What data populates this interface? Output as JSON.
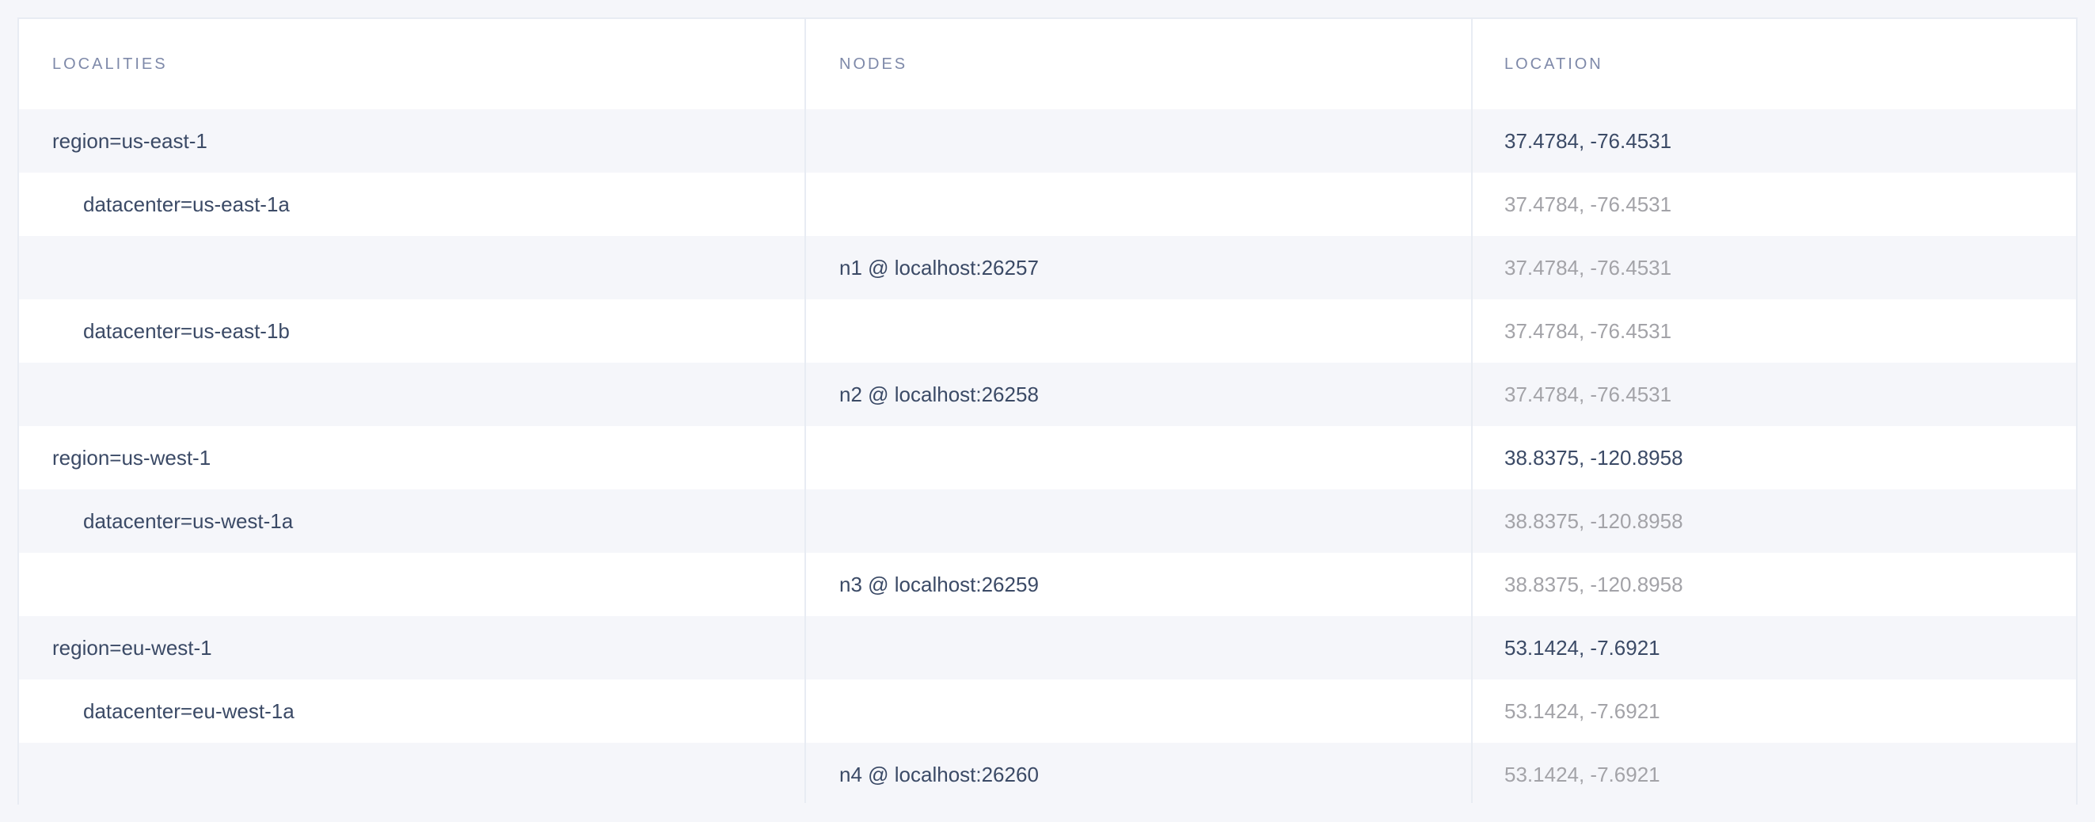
{
  "table": {
    "headers": [
      "LOCALITIES",
      "NODES",
      "LOCATION"
    ],
    "rows": [
      {
        "locality": "region=us-east-1",
        "node": "",
        "location": "37.4784, -76.4531",
        "level": 0
      },
      {
        "locality": "datacenter=us-east-1a",
        "node": "",
        "location": "37.4784, -76.4531",
        "level": 1
      },
      {
        "locality": "",
        "node": "n1 @ localhost:26257",
        "location": "37.4784, -76.4531",
        "level": 2
      },
      {
        "locality": "datacenter=us-east-1b",
        "node": "",
        "location": "37.4784, -76.4531",
        "level": 1
      },
      {
        "locality": "",
        "node": "n2 @ localhost:26258",
        "location": "37.4784, -76.4531",
        "level": 2
      },
      {
        "locality": "region=us-west-1",
        "node": "",
        "location": "38.8375, -120.8958",
        "level": 0
      },
      {
        "locality": "datacenter=us-west-1a",
        "node": "",
        "location": "38.8375, -120.8958",
        "level": 1
      },
      {
        "locality": "",
        "node": "n3 @ localhost:26259",
        "location": "38.8375, -120.8958",
        "level": 2
      },
      {
        "locality": "region=eu-west-1",
        "node": "",
        "location": "53.1424, -7.6921",
        "level": 0
      },
      {
        "locality": "datacenter=eu-west-1a",
        "node": "",
        "location": "53.1424, -7.6921",
        "level": 1
      },
      {
        "locality": "",
        "node": "n4 @ localhost:26260",
        "location": "53.1424, -7.6921",
        "level": 2
      }
    ]
  },
  "colors": {
    "text": "#3b4a66",
    "muted": "#a3a3a8",
    "header": "#7e89a9",
    "stripe": "#f5f6fa",
    "border": "#e8ecf3"
  }
}
